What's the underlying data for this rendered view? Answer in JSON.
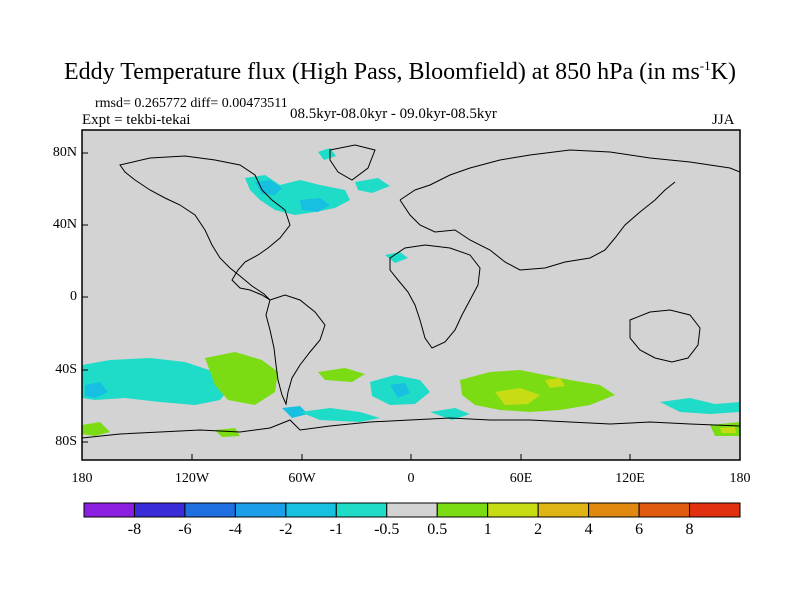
{
  "title": {
    "main": "Eddy Temperature flux (High Pass, Bloomfield) at 850 hPa (in ms",
    "sup": "-1",
    "tail": "K)"
  },
  "stats": {
    "rmsd_line": "rmsd= 0.265772 diff= 0.00473511"
  },
  "experiment": "Expt = tekbi-tekai",
  "period": "08.5kyr-08.0kyr - 09.0kyr-08.5kyr",
  "season": "JJA",
  "axes": {
    "lat_labels": [
      "80N",
      "40N",
      "0",
      "40S",
      "80S"
    ],
    "lon_labels": [
      "180",
      "120W",
      "60W",
      "0",
      "60E",
      "120E",
      "180"
    ]
  },
  "colorbar": {
    "labels": [
      "-8",
      "-6",
      "-4",
      "-2",
      "-1",
      "-0.5",
      "0.5",
      "1",
      "2",
      "4",
      "6",
      "8"
    ],
    "colors": [
      "#8a1fe0",
      "#3a2bd8",
      "#1f6fe0",
      "#1a9fe8",
      "#17bfe0",
      "#1fdcc8",
      "#d3d3d3",
      "#7cdc14",
      "#c8dc14",
      "#e0b414",
      "#e0880f",
      "#e05a0f",
      "#e0300f"
    ]
  },
  "map_colors": {
    "ocean_background": "#d3d3d3",
    "coastline": "#000000"
  }
}
